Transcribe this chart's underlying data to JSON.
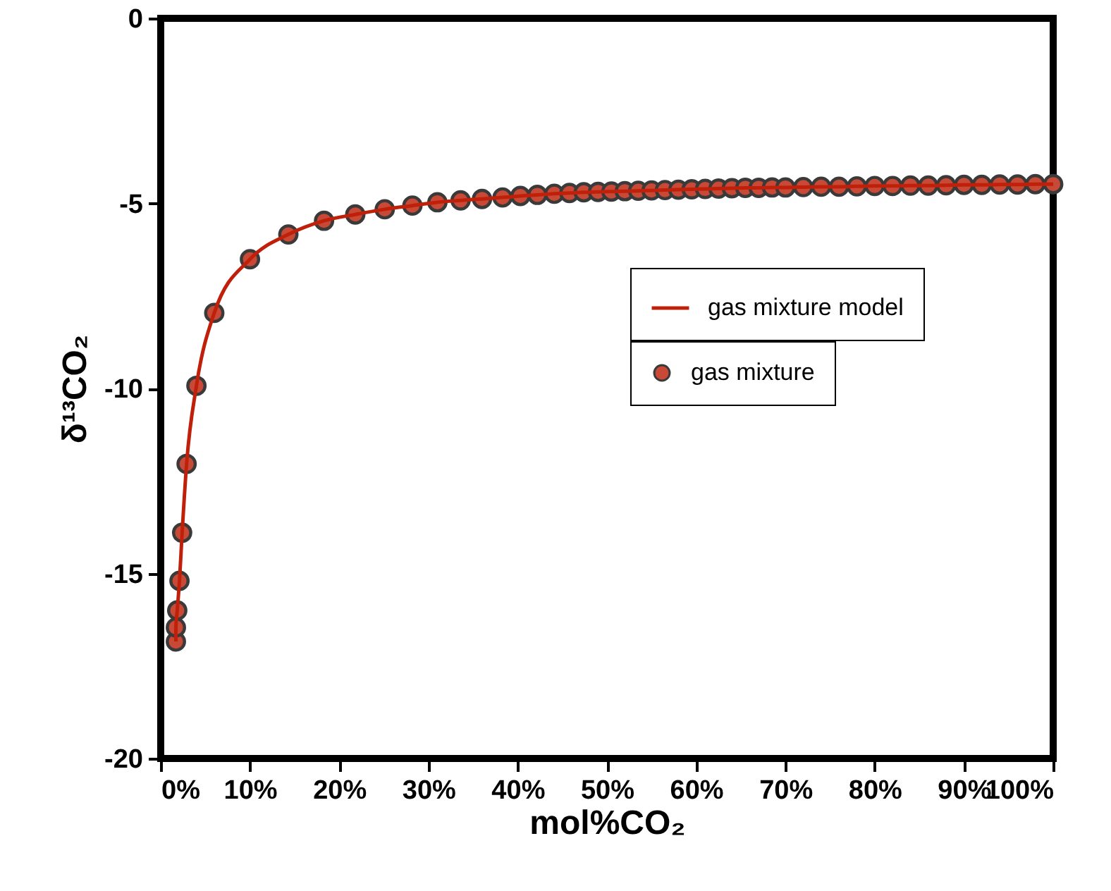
{
  "chart_data": {
    "type": "scatter",
    "xlabel": "mol%CO₂",
    "ylabel": "δ¹³CO₂",
    "x": [
      1.7,
      1.7,
      1.85,
      2.1,
      2.4,
      2.9,
      4.0,
      6.0,
      10.0,
      14.3,
      18.3,
      21.8,
      25.1,
      28.2,
      31.0,
      33.6,
      36.0,
      38.3,
      40.3,
      42.2,
      44.1,
      45.8,
      47.4,
      49.0,
      50.5,
      52.0,
      53.5,
      55.0,
      56.5,
      58.0,
      59.5,
      61.0,
      62.5,
      64.0,
      65.5,
      67.0,
      68.5,
      70.0,
      72.0,
      74.0,
      76.0,
      78.0,
      80.0,
      82.0,
      84.0,
      86.0,
      88.0,
      90.0,
      92.0,
      94.0,
      96.0,
      98.0,
      100.0
    ],
    "series": [
      {
        "name": "gas mixture",
        "color": "#c84a36",
        "values": [
          -16.84,
          -16.46,
          -16.0,
          -15.2,
          -13.9,
          -12.04,
          -9.93,
          -7.96,
          -6.51,
          -5.84,
          -5.47,
          -5.3,
          -5.16,
          -5.06,
          -4.97,
          -4.92,
          -4.88,
          -4.84,
          -4.8,
          -4.77,
          -4.74,
          -4.72,
          -4.7,
          -4.69,
          -4.68,
          -4.67,
          -4.66,
          -4.65,
          -4.64,
          -4.63,
          -4.62,
          -4.61,
          -4.6,
          -4.59,
          -4.58,
          -4.58,
          -4.57,
          -4.57,
          -4.56,
          -4.55,
          -4.55,
          -4.54,
          -4.53,
          -4.53,
          -4.52,
          -4.52,
          -4.51,
          -4.5,
          -4.5,
          -4.49,
          -4.49,
          -4.48,
          -4.48
        ]
      },
      {
        "name": "gas mixture model",
        "type": "line",
        "marker": "none",
        "color": "#c0200a",
        "values": [
          -16.84,
          -16.46,
          -16.0,
          -15.2,
          -13.9,
          -12.04,
          -9.93,
          -7.96,
          -6.51,
          -5.84,
          -5.47,
          -5.3,
          -5.16,
          -5.06,
          -4.97,
          -4.92,
          -4.88,
          -4.84,
          -4.8,
          -4.77,
          -4.74,
          -4.72,
          -4.7,
          -4.69,
          -4.68,
          -4.67,
          -4.66,
          -4.65,
          -4.64,
          -4.63,
          -4.62,
          -4.61,
          -4.6,
          -4.59,
          -4.58,
          -4.58,
          -4.57,
          -4.57,
          -4.56,
          -4.55,
          -4.55,
          -4.54,
          -4.53,
          -4.53,
          -4.52,
          -4.52,
          -4.51,
          -4.5,
          -4.5,
          -4.49,
          -4.49,
          -4.48,
          -4.48
        ]
      }
    ],
    "xlim": [
      0,
      100
    ],
    "xticks": [
      {
        "value": 0,
        "label": "0%"
      },
      {
        "value": 10,
        "label": "10%"
      },
      {
        "value": 20,
        "label": "20%"
      },
      {
        "value": 30,
        "label": "30%"
      },
      {
        "value": 40,
        "label": "40%"
      },
      {
        "value": 50,
        "label": "50%"
      },
      {
        "value": 60,
        "label": "60%"
      },
      {
        "value": 70,
        "label": "70%"
      },
      {
        "value": 80,
        "label": "80%"
      },
      {
        "value": 90,
        "label": "90%"
      },
      {
        "value": 100,
        "label": "100%"
      }
    ],
    "ylim": [
      -20,
      0
    ],
    "yticks": [
      -20,
      -15,
      -10,
      -5,
      0
    ],
    "grid": false,
    "legend": "top right",
    "marker": "circle",
    "line_style": "solid"
  }
}
